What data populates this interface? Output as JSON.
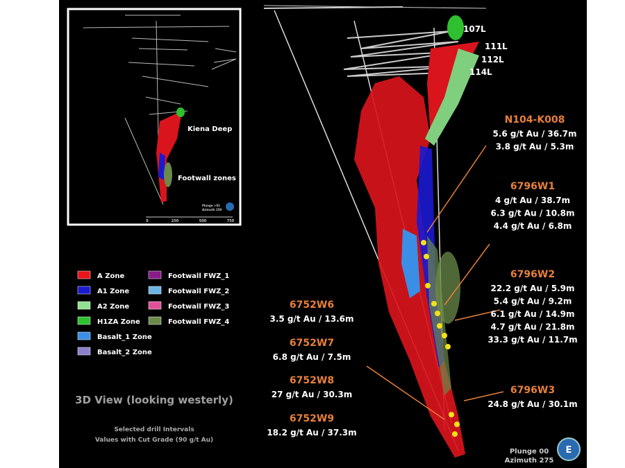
{
  "inset": {
    "labels": [
      "Kiena Deep",
      "Footwall zones"
    ],
    "view": [
      "Plunge +01",
      "Azimuth 259"
    ],
    "scale": [
      "0",
      "250",
      "500",
      "750"
    ]
  },
  "levels": [
    "107L",
    "111L",
    "112L",
    "114L"
  ],
  "drill_holes": [
    {
      "name": "N104-K008",
      "intervals": [
        "5.6 g/t Au / 36.7m",
        "3.8 g/t Au / 5.3m"
      ]
    },
    {
      "name": "6796W1",
      "intervals": [
        "4 g/t Au / 38.7m",
        "6.3 g/t Au / 10.8m",
        "4.4 g/t Au / 6.8m"
      ]
    },
    {
      "name": "6796W2",
      "intervals": [
        "22.2 g/t Au / 5.9m",
        "5.4 g/t Au / 9.2m",
        "6.1 g/t Au / 14.9m",
        "4.7 g/t Au / 21.8m",
        "33.3 g/t Au / 11.7m"
      ]
    },
    {
      "name": "6796W3",
      "intervals": [
        "24.8 g/t Au / 30.1m"
      ]
    },
    {
      "name": "6752W6",
      "intervals": [
        "3.5 g/t Au / 13.6m"
      ]
    },
    {
      "name": "6752W7",
      "intervals": [
        "6.8 g/t Au / 7.5m"
      ]
    },
    {
      "name": "6752W8",
      "intervals": [
        "27 g/t Au / 30.3m"
      ]
    },
    {
      "name": "6752W9",
      "intervals": [
        "18.2 g/t Au / 37.3m"
      ]
    }
  ],
  "legend": [
    {
      "label": "A Zone",
      "color": "#e8151b"
    },
    {
      "label": "A1 Zone",
      "color": "#1a1ad0"
    },
    {
      "label": "A2 Zone",
      "color": "#8fe08f"
    },
    {
      "label": "H1ZA Zone",
      "color": "#2ec02e"
    },
    {
      "label": "Basalt_1 Zone",
      "color": "#3a8ee6"
    },
    {
      "label": "Basalt_2 Zone",
      "color": "#8c7fcc"
    },
    {
      "label": "Footwall FWZ_1",
      "color": "#8a1a8a"
    },
    {
      "label": "Footwall FWZ_2",
      "color": "#6cb4e4"
    },
    {
      "label": "Footwall FWZ_3",
      "color": "#e0509a"
    },
    {
      "label": "Footwall FWZ_4",
      "color": "#6b8a4a"
    }
  ],
  "title": "3D View (looking westerly)",
  "notes": [
    "Selected drill Intervals",
    "Values with Cut Grade (90 g/t Au)"
  ],
  "view": [
    "Plunge 00",
    "Azimuth 275"
  ],
  "compass": "E"
}
